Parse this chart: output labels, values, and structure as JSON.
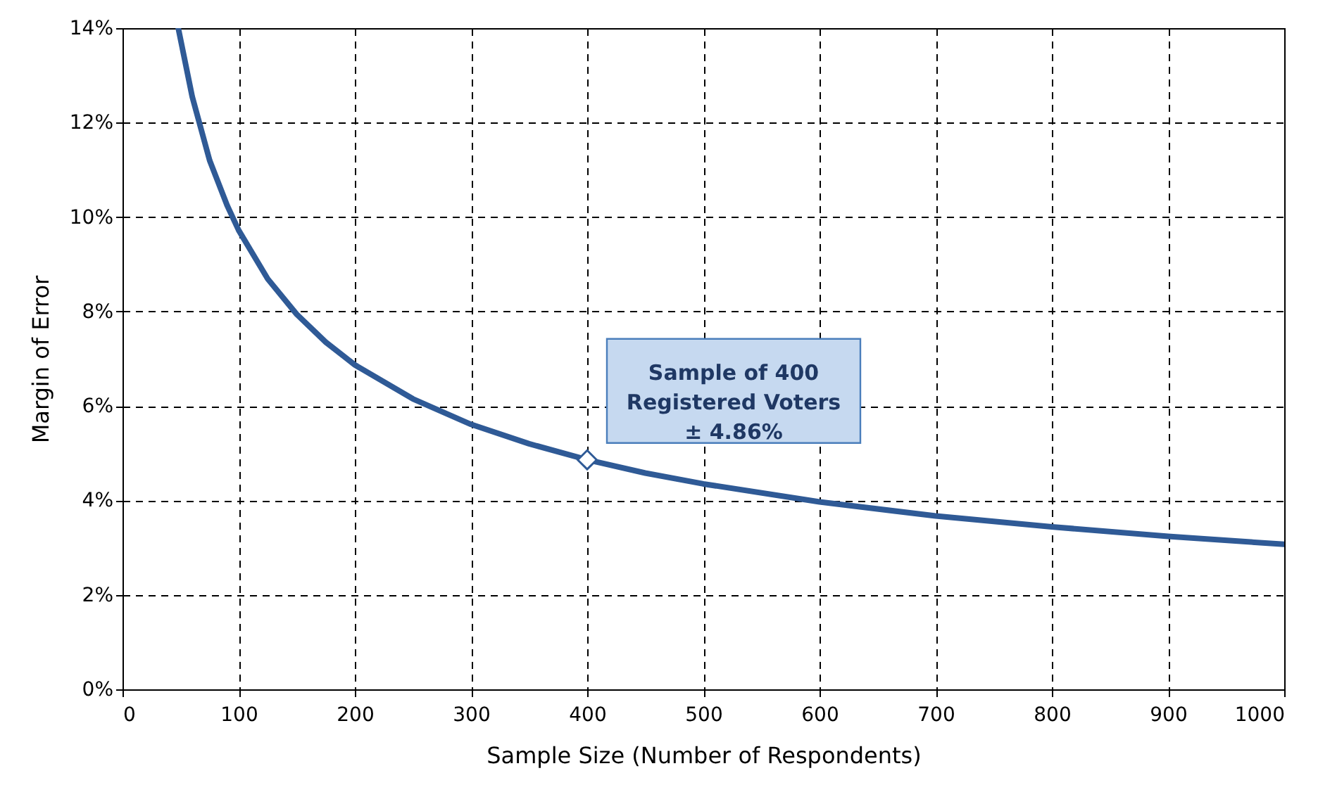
{
  "chart_data": {
    "type": "line",
    "xlabel": "Sample Size (Number of Respondents)",
    "ylabel": "Margin of Error",
    "x": [
      48,
      60,
      75,
      90,
      100,
      125,
      150,
      175,
      200,
      250,
      300,
      350,
      400,
      450,
      500,
      600,
      700,
      800,
      900,
      1000
    ],
    "series": [
      {
        "color": "#2f5a96",
        "values": [
          14.0,
          12.55,
          11.2,
          10.25,
          9.72,
          8.69,
          7.94,
          7.35,
          6.87,
          6.15,
          5.61,
          5.2,
          4.86,
          4.58,
          4.35,
          3.97,
          3.67,
          3.44,
          3.24,
          3.07
        ]
      },
      {
        "type": "scatter",
        "marker": "diamond",
        "color": "#2f5a96",
        "x": [
          400
        ],
        "values": [
          4.86
        ]
      }
    ],
    "annotations": [
      {
        "text": "Sample of 400\nRegistered Voters\n± 4.86%",
        "x": 400,
        "y": 4.86
      }
    ],
    "xlim": [
      0,
      1000
    ],
    "xticks": [
      0,
      100,
      200,
      300,
      400,
      500,
      600,
      700,
      800,
      900,
      1000
    ],
    "ylim": [
      0,
      14
    ],
    "yticks": [
      {
        "value": 0,
        "label": "0%"
      },
      {
        "value": 2,
        "label": "2%"
      },
      {
        "value": 4,
        "label": "4%"
      },
      {
        "value": 6,
        "label": "6%"
      },
      {
        "value": 8,
        "label": "8%"
      },
      {
        "value": 10,
        "label": "10%"
      },
      {
        "value": 12,
        "label": "12%"
      },
      {
        "value": 14,
        "label": "14%"
      }
    ],
    "grid": true,
    "line_style": "solid",
    "marker": "none"
  }
}
